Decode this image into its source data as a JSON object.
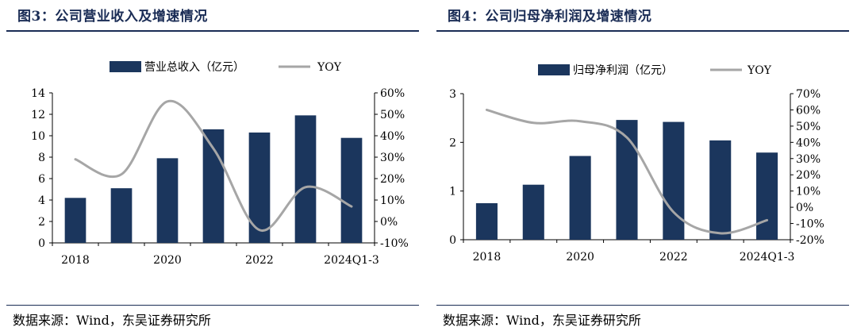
{
  "charts": [
    {
      "title": "图3：公司营业收入及增速情况",
      "source": "数据来源：Wind，东吴证券研究所",
      "chart_data": {
        "type": "bar",
        "categories": [
          "2018",
          "2019",
          "2020",
          "2021",
          "2022",
          "2023",
          "2024Q1-3"
        ],
        "x_tick_labels": [
          "2018",
          "",
          "2020",
          "",
          "2022",
          "",
          "2024Q1-3"
        ],
        "series": [
          {
            "name": "营业总收入（亿元）",
            "type": "bar",
            "axis": "left",
            "color": "#1b365d",
            "values": [
              4.2,
              5.1,
              7.9,
              10.6,
              10.3,
              11.9,
              9.8
            ]
          },
          {
            "name": "YOY",
            "type": "line",
            "axis": "right",
            "color": "#a6a6a6",
            "values": [
              29,
              22,
              56,
              34,
              -4,
              16,
              7
            ]
          }
        ],
        "y_left": {
          "min": 0,
          "max": 14,
          "ticks": [
            "0",
            "2",
            "4",
            "6",
            "8",
            "10",
            "12",
            "14"
          ]
        },
        "y_right": {
          "min": -10,
          "max": 60,
          "ticks": [
            "-10%",
            "0%",
            "10%",
            "20%",
            "30%",
            "40%",
            "50%",
            "60%"
          ]
        },
        "legend_position": "top",
        "grid": false
      }
    },
    {
      "title": "图4：公司归母净利润及增速情况",
      "source": "数据来源：Wind，东吴证券研究所",
      "chart_data": {
        "type": "bar",
        "categories": [
          "2018",
          "2019",
          "2020",
          "2021",
          "2022",
          "2023",
          "2024Q1-3"
        ],
        "x_tick_labels": [
          "2018",
          "",
          "2020",
          "",
          "2022",
          "",
          "2024Q1-3"
        ],
        "series": [
          {
            "name": "归母净利润（亿元）",
            "type": "bar",
            "axis": "left",
            "color": "#1b365d",
            "values": [
              0.75,
              1.13,
              1.72,
              2.46,
              2.42,
              2.04,
              1.79
            ]
          },
          {
            "name": "YOY",
            "type": "line",
            "axis": "right",
            "color": "#a6a6a6",
            "values": [
              60,
              52,
              53,
              43,
              -3,
              -16,
              -8
            ]
          }
        ],
        "y_left": {
          "min": 0,
          "max": 3,
          "ticks": [
            "0",
            "1",
            "2",
            "3"
          ]
        },
        "y_right": {
          "min": -20,
          "max": 70,
          "ticks": [
            "-20%",
            "-10%",
            "0%",
            "10%",
            "20%",
            "30%",
            "40%",
            "50%",
            "60%",
            "70%"
          ]
        },
        "legend_position": "top",
        "grid": false
      }
    }
  ]
}
